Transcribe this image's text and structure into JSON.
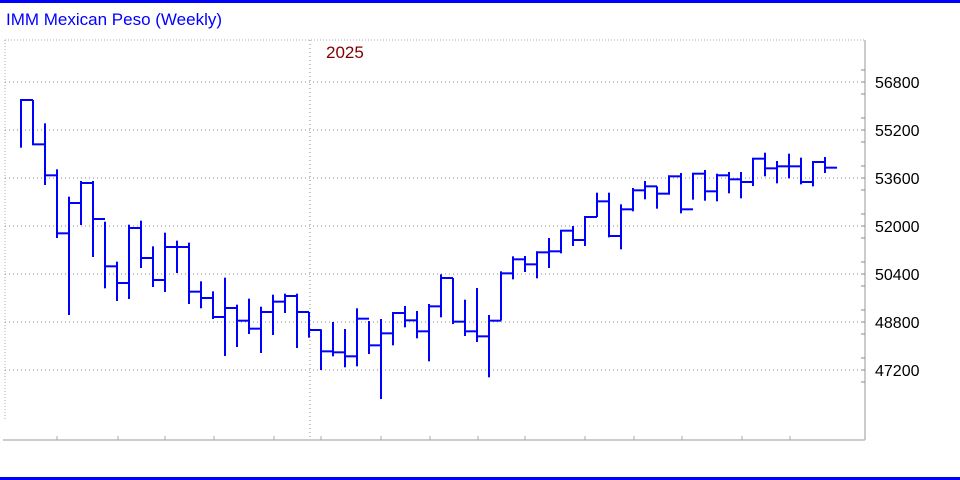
{
  "title": "IMM Mexican Peso (Weekly)",
  "colors": {
    "bars": "#0000ff",
    "title": "#0000ff",
    "year_label": "#800000",
    "frame": "#0000ff"
  },
  "chart_data": {
    "type": "ohlc",
    "title": "IMM Mexican Peso (Weekly)",
    "year_marker": "2025",
    "year_marker_bar_index": 24,
    "ylim": [
      45600,
      58000
    ],
    "yticks": [
      56800,
      55200,
      53600,
      52000,
      50400,
      48800,
      47200
    ],
    "ytick_labels": [
      "56800",
      "55200",
      "53600",
      "52000",
      "50400",
      "48800",
      "47200"
    ],
    "grid": true,
    "bars_hlc": [
      [
        56200,
        54611,
        56200
      ],
      [
        56200,
        54722,
        54722
      ],
      [
        55422,
        53367,
        53689
      ],
      [
        53889,
        51600,
        51756
      ],
      [
        52978,
        49033,
        52767
      ],
      [
        53500,
        52033,
        53433
      ],
      [
        53500,
        50967,
        52233
      ],
      [
        52144,
        49922,
        50656
      ],
      [
        50811,
        49500,
        50100
      ],
      [
        52044,
        49567,
        51933
      ],
      [
        52178,
        50600,
        50933
      ],
      [
        51322,
        49967,
        50200
      ],
      [
        51778,
        49800,
        51300
      ],
      [
        51511,
        50433,
        51300
      ],
      [
        51444,
        49400,
        49811
      ],
      [
        50156,
        49256,
        49600
      ],
      [
        49822,
        48900,
        48967
      ],
      [
        50278,
        47667,
        49267
      ],
      [
        49378,
        47967,
        48844
      ],
      [
        49578,
        48400,
        48578
      ],
      [
        49311,
        47767,
        49133
      ],
      [
        49711,
        48367,
        49478
      ],
      [
        49744,
        49100,
        49667
      ],
      [
        49744,
        47933,
        49133
      ],
      [
        49133,
        48278,
        48533
      ],
      [
        48556,
        47200,
        47822
      ],
      [
        48800,
        47656,
        47789
      ],
      [
        48567,
        47289,
        47656
      ],
      [
        49256,
        47322,
        48911
      ],
      [
        48833,
        47733,
        48022
      ],
      [
        48900,
        46233,
        48422
      ],
      [
        49133,
        48022,
        49100
      ],
      [
        49333,
        48622,
        48856
      ],
      [
        49167,
        48256,
        48489
      ],
      [
        49400,
        47489,
        49322
      ],
      [
        50389,
        48956,
        50267
      ],
      [
        50267,
        48733,
        48811
      ],
      [
        49544,
        48333,
        48489
      ],
      [
        49933,
        48133,
        48322
      ],
      [
        49033,
        46956,
        48844
      ],
      [
        50489,
        48844,
        50422
      ],
      [
        50989,
        50222,
        50889
      ],
      [
        51000,
        50467,
        50722
      ],
      [
        51156,
        50256,
        51122
      ],
      [
        51600,
        50600,
        51156
      ],
      [
        51856,
        51089,
        51844
      ],
      [
        52000,
        51333,
        51533
      ],
      [
        52333,
        51333,
        52300
      ],
      [
        53111,
        52300,
        52822
      ],
      [
        53111,
        51622,
        51667
      ],
      [
        52722,
        51222,
        52556
      ],
      [
        53267,
        52489,
        53189
      ],
      [
        53500,
        52889,
        53322
      ],
      [
        53322,
        52578,
        53078
      ],
      [
        53689,
        53044,
        53656
      ],
      [
        53767,
        52422,
        52556
      ],
      [
        53767,
        52878,
        53744
      ],
      [
        53867,
        52844,
        53156
      ],
      [
        53744,
        52822,
        53689
      ],
      [
        53800,
        53089,
        53556
      ],
      [
        53800,
        52922,
        53467
      ],
      [
        54244,
        53333,
        54244
      ],
      [
        54444,
        53656,
        53922
      ],
      [
        54167,
        53422,
        53989
      ],
      [
        54411,
        53589,
        53989
      ],
      [
        54278,
        53389,
        53467
      ],
      [
        54156,
        53322,
        54133
      ],
      [
        54300,
        53767,
        53944
      ]
    ]
  }
}
